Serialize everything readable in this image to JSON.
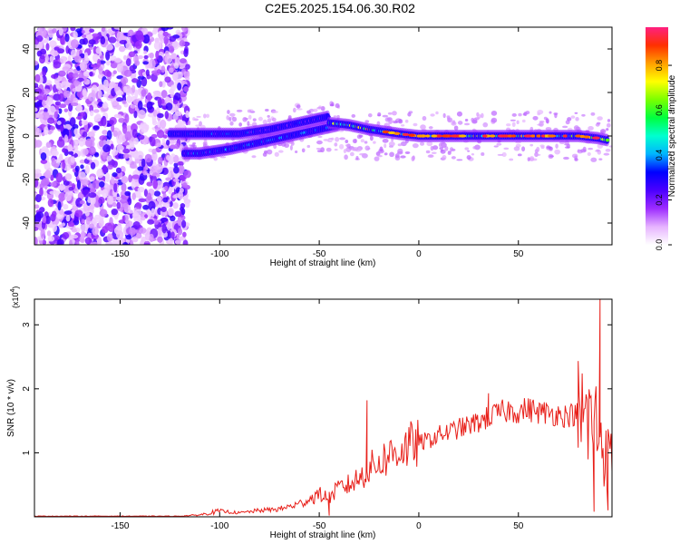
{
  "figure_title": "C2E5.2025.154.06.30.R02",
  "colors": {
    "snr_line": "#e8201a",
    "axis": "#000000",
    "colormap": [
      "#ffffff",
      "#e6b3ff",
      "#9d2cff",
      "#4b00ff",
      "#0000ff",
      "#00b4ff",
      "#00ffd0",
      "#00ff40",
      "#7aff00",
      "#ffff00",
      "#ffa000",
      "#ff3000",
      "#ff2080"
    ]
  },
  "chart_data": [
    {
      "type": "heatmap",
      "title": "C2E5.2025.154.06.30.R02",
      "xlabel": "Height of straight line (km)",
      "ylabel": "Frequency (Hz)",
      "xlim": [
        -193,
        97
      ],
      "ylim": [
        -50,
        50
      ],
      "x_ticks": [
        -150,
        -100,
        -50,
        0,
        50
      ],
      "x_tick_labels": [
        "-150",
        "-100",
        "-50",
        "0",
        "50"
      ],
      "y_ticks": [
        -40,
        -20,
        0,
        20,
        40
      ],
      "y_tick_labels": [
        "-40",
        "-20",
        "0",
        "20",
        "40"
      ],
      "colorbar": {
        "label": "Normalized spectral amplitude",
        "range": [
          0.0,
          0.97
        ],
        "ticks": [
          0.0,
          0.2,
          0.4,
          0.6,
          0.8
        ],
        "tick_labels": [
          "0.0",
          "0.2",
          "0.4",
          "0.6",
          "0.8"
        ]
      },
      "noise_region": {
        "x": [
          -193,
          -116
        ],
        "amplitude": [
          0.05,
          0.3
        ]
      },
      "signal_tracks": [
        {
          "x": [
            -125,
            -110,
            -90,
            -75,
            -60,
            -50,
            -45
          ],
          "freq": [
            1,
            1,
            1,
            3,
            6,
            8,
            9
          ],
          "amplitude": 0.35
        },
        {
          "x": [
            -118,
            -110,
            -95,
            -85,
            -70,
            -55,
            -45,
            -40
          ],
          "freq": [
            -8,
            -8,
            -6,
            -4,
            -1,
            2,
            4,
            5
          ],
          "amplitude": 0.4
        },
        {
          "x": [
            -45,
            -35,
            -25,
            -10,
            0,
            20,
            40,
            60,
            80,
            90,
            95
          ],
          "freq": [
            6,
            5,
            3,
            1,
            0,
            0,
            0,
            0,
            0,
            -1,
            -2
          ],
          "amplitude": 0.75
        }
      ]
    },
    {
      "type": "line",
      "xlabel": "Height of straight line (km)",
      "ylabel": "SNR (10 * v/v)",
      "y_multiplier": "(x10",
      "y_multiplier_exp": "4",
      "xlim": [
        -193,
        97
      ],
      "ylim": [
        0,
        3.4
      ],
      "x_ticks": [
        -150,
        -100,
        -50,
        0,
        50
      ],
      "x_tick_labels": [
        "-150",
        "-100",
        "-50",
        "0",
        "50"
      ],
      "y_ticks": [
        1,
        2,
        3
      ],
      "y_tick_labels": [
        "1",
        "2",
        "3"
      ],
      "series": [
        {
          "x": [
            -193,
            -120,
            -110,
            -100,
            -90,
            -80,
            -70,
            -60,
            -50,
            -45,
            -40,
            -35,
            -30,
            -25,
            -20,
            -15,
            -10,
            -5,
            0,
            5,
            10,
            15,
            20,
            25,
            30,
            35,
            40,
            45,
            50,
            55,
            60,
            65,
            70,
            75,
            80,
            85,
            90,
            95
          ],
          "values": [
            0.01,
            0.01,
            0.03,
            0.09,
            0.06,
            0.1,
            0.12,
            0.2,
            0.35,
            0.3,
            0.45,
            0.5,
            0.6,
            0.75,
            0.85,
            0.95,
            1.05,
            1.1,
            1.15,
            1.2,
            1.28,
            1.32,
            1.38,
            1.42,
            1.48,
            1.55,
            1.62,
            1.66,
            1.65,
            1.68,
            1.64,
            1.62,
            1.6,
            1.58,
            1.62,
            1.5,
            1.4,
            0.9
          ],
          "spikes": [
            {
              "x": -26,
              "value": 1.82
            },
            {
              "x": -45,
              "value": 0.02
            },
            {
              "x": 35,
              "value": 1.93
            },
            {
              "x": 80,
              "value": 1.08
            },
            {
              "x": 80,
              "value": 2.25
            },
            {
              "x": 88,
              "value": 0.08
            },
            {
              "x": 91,
              "value": 3.4
            },
            {
              "x": 95,
              "value": 0.1
            }
          ]
        }
      ]
    }
  ]
}
